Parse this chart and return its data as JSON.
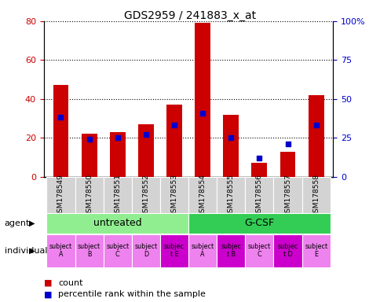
{
  "title": "GDS2959 / 241883_x_at",
  "samples": [
    "GSM178549",
    "GSM178550",
    "GSM178551",
    "GSM178552",
    "GSM178553",
    "GSM178554",
    "GSM178555",
    "GSM178556",
    "GSM178557",
    "GSM178558"
  ],
  "count_values": [
    47,
    22,
    23,
    27,
    37,
    79,
    32,
    7,
    13,
    42
  ],
  "percentile_values": [
    38,
    24,
    25,
    27,
    33,
    41,
    25,
    12,
    21,
    33
  ],
  "left_ylim": [
    0,
    80
  ],
  "right_ylim": [
    0,
    100
  ],
  "left_yticks": [
    0,
    20,
    40,
    60,
    80
  ],
  "right_yticks": [
    0,
    25,
    50,
    75,
    100
  ],
  "right_yticklabels": [
    "0",
    "25",
    "50",
    "75",
    "100%"
  ],
  "agent_groups": [
    {
      "label": "untreated",
      "start": 0,
      "end": 5,
      "color": "#90ee90"
    },
    {
      "label": "G-CSF",
      "start": 5,
      "end": 10,
      "color": "#33cc55"
    }
  ],
  "individual_labels": [
    "subject\nA",
    "subject\nB",
    "subject\nC",
    "subject\nD",
    "subjec\nt E",
    "subject\nA",
    "subjec\nt B",
    "subject\nC",
    "subjec\nt D",
    "subject\nE"
  ],
  "individual_highlight": [
    4,
    6,
    8
  ],
  "individual_bg_normal": "#ee82ee",
  "individual_bg_highlight": "#cc00cc",
  "bar_color": "#cc0000",
  "dot_color": "#0000cc",
  "bar_width": 0.55,
  "tick_label_color_left": "#cc0000",
  "tick_label_color_right": "#0000cc",
  "legend_count_color": "#cc0000",
  "legend_pct_color": "#0000cc",
  "xlabel_area_bg": "#d3d3d3",
  "agent_label": "agent",
  "individual_label": "individual"
}
